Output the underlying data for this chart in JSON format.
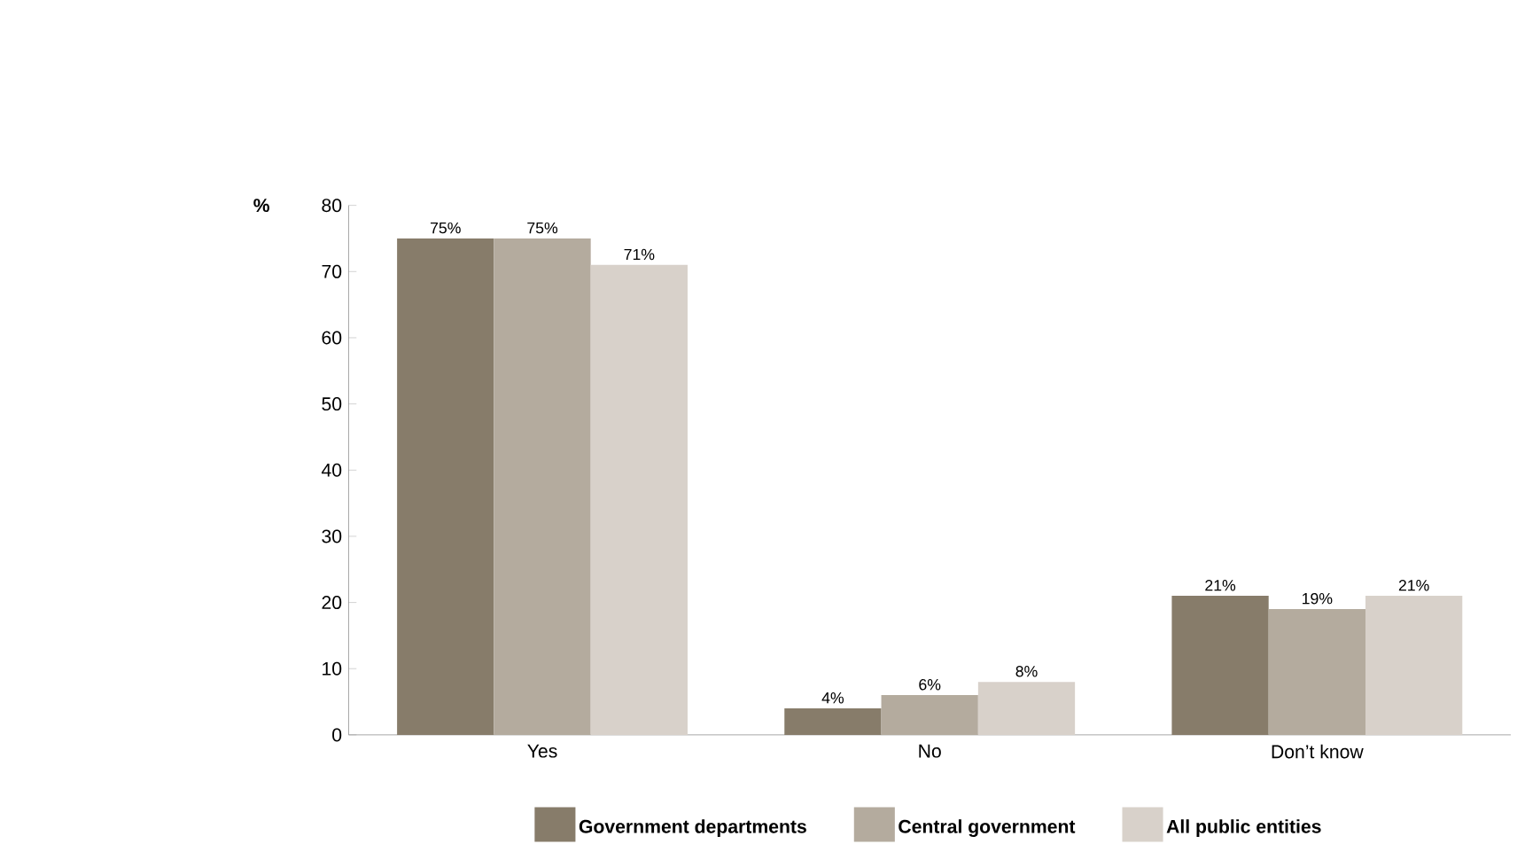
{
  "chart_data": {
    "type": "bar",
    "ylabel": "%",
    "categories": [
      "Yes",
      "No",
      "Don’t know"
    ],
    "series": [
      {
        "name": "Government departments",
        "color": "#877c6a",
        "values": [
          75,
          4,
          21
        ],
        "value_labels": [
          "75%",
          "4%",
          "21%"
        ]
      },
      {
        "name": "Central government",
        "color": "#b4ab9e",
        "values": [
          75,
          6,
          19
        ],
        "value_labels": [
          "75%",
          "6%",
          "19%"
        ]
      },
      {
        "name": "All public entities",
        "color": "#d8d1ca",
        "values": [
          71,
          8,
          21
        ],
        "value_labels": [
          "71%",
          "8%",
          "21%"
        ]
      }
    ],
    "ylim": [
      0,
      80
    ],
    "yticks": [
      0,
      10,
      20,
      30,
      40,
      50,
      60,
      70,
      80
    ],
    "grid": false,
    "legend": "bottom"
  }
}
